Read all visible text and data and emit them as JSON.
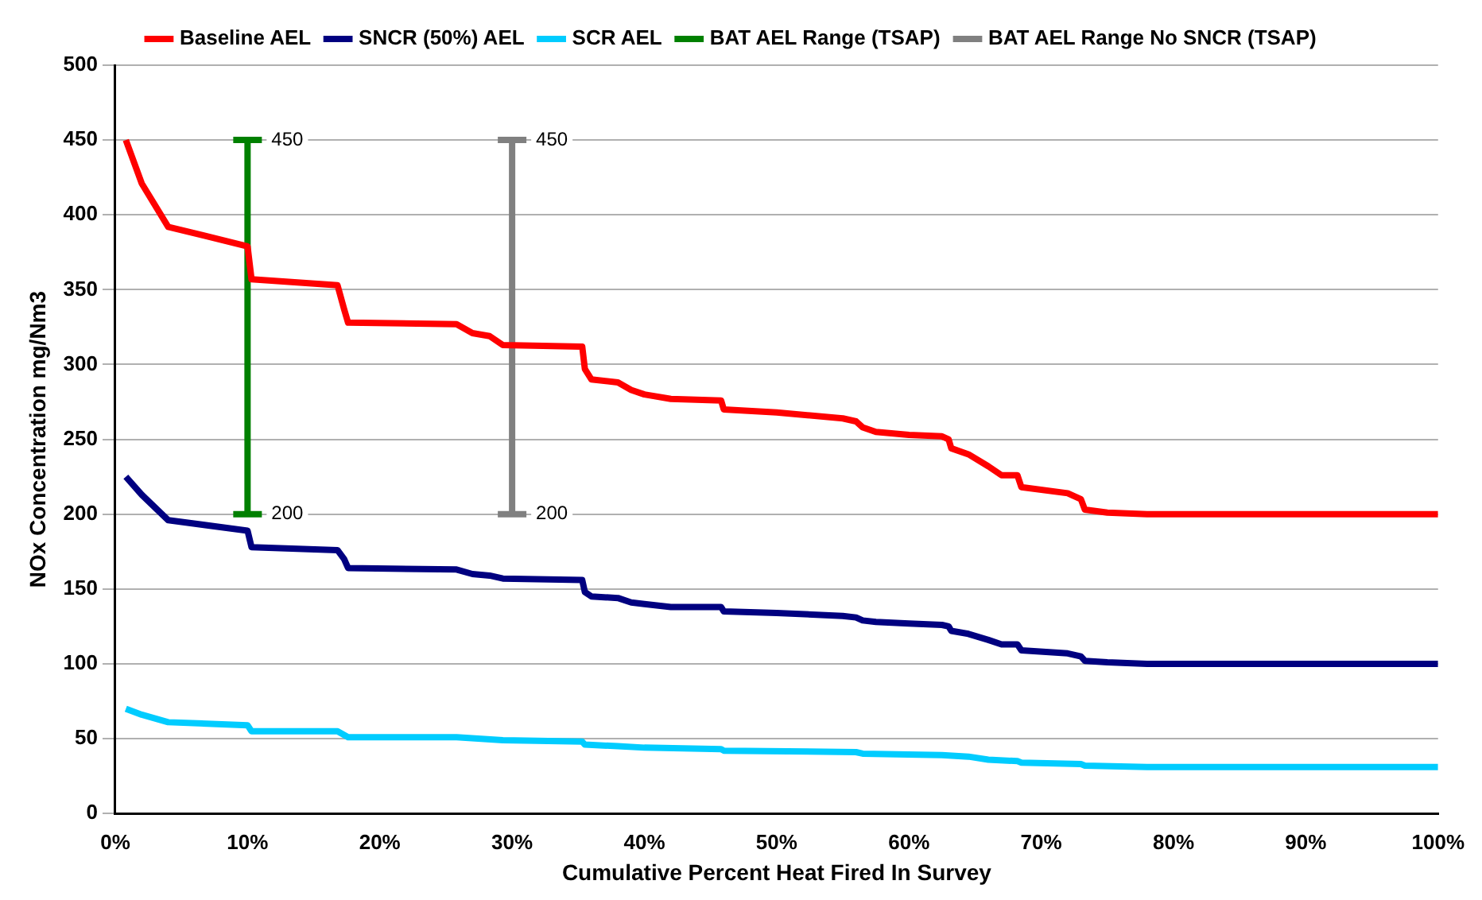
{
  "chart_data": {
    "type": "line",
    "xlabel": "Cumulative Percent Heat Fired In Survey",
    "ylabel": "NOx Concentration mg/Nm3",
    "xlim": [
      0,
      100
    ],
    "ylim": [
      0,
      500
    ],
    "xticks": [
      {
        "value": 0,
        "label": "0%"
      },
      {
        "value": 10,
        "label": "10%"
      },
      {
        "value": 20,
        "label": "20%"
      },
      {
        "value": 30,
        "label": "30%"
      },
      {
        "value": 40,
        "label": "40%"
      },
      {
        "value": 50,
        "label": "50%"
      },
      {
        "value": 60,
        "label": "60%"
      },
      {
        "value": 70,
        "label": "70%"
      },
      {
        "value": 80,
        "label": "80%"
      },
      {
        "value": 90,
        "label": "90%"
      },
      {
        "value": 100,
        "label": "100%"
      }
    ],
    "yticks": [
      0,
      50,
      100,
      150,
      200,
      250,
      300,
      350,
      400,
      450,
      500
    ],
    "grid": "y",
    "legend": "top",
    "marker": "none",
    "line_style": "solid",
    "series": [
      {
        "name": "Baseline AEL",
        "color": "#ff0000",
        "x": [
          0.8,
          2,
          4,
          10,
          10.3,
          16.8,
          17.3,
          17.6,
          25.8,
          27,
          28.3,
          29.3,
          35.3,
          35.5,
          36,
          38,
          39,
          40,
          42,
          45.8,
          46,
          50,
          55,
          56,
          56.5,
          57.5,
          60,
          62.5,
          63,
          63.2,
          64.5,
          66,
          67,
          68.2,
          68.5,
          72,
          73,
          73.3,
          75,
          78,
          100
        ],
        "values": [
          450,
          421,
          392,
          379,
          357,
          353,
          337,
          328,
          327,
          321,
          319,
          313,
          312,
          297,
          290,
          288,
          283,
          280,
          277,
          276,
          270,
          268,
          264,
          262,
          258,
          255,
          253,
          252,
          250,
          244,
          240,
          232,
          226,
          226,
          218,
          214,
          210,
          203,
          201,
          200,
          200
        ]
      },
      {
        "name": "SNCR (50%) AEL",
        "color": "#000080",
        "x": [
          0.8,
          2,
          4,
          10,
          10.3,
          16.8,
          17.3,
          17.6,
          25.8,
          27,
          28.3,
          29.3,
          35.3,
          35.5,
          36,
          38,
          39,
          40,
          42,
          45.8,
          46,
          50,
          55,
          56,
          56.5,
          57.5,
          60,
          62.5,
          63,
          63.2,
          64.5,
          66,
          67,
          68.2,
          68.5,
          72,
          73,
          73.3,
          75,
          78,
          100
        ],
        "values": [
          225,
          213,
          196,
          189,
          178,
          176,
          170,
          164,
          163,
          160,
          159,
          157,
          156,
          148,
          145,
          144,
          141,
          140,
          138,
          138,
          135,
          134,
          132,
          131,
          129,
          128,
          127,
          126,
          125,
          122,
          120,
          116,
          113,
          113,
          109,
          107,
          105,
          102,
          101,
          100,
          100
        ]
      },
      {
        "name": "SCR AEL",
        "color": "#00ccff",
        "x": [
          0.8,
          2,
          4,
          10,
          10.3,
          16.8,
          17.6,
          25.8,
          29.3,
          35.3,
          35.5,
          38,
          40,
          45.8,
          46,
          56,
          56.5,
          62.5,
          64.5,
          66,
          68.2,
          68.5,
          73,
          73.3,
          78,
          100
        ],
        "values": [
          70,
          66,
          61,
          59,
          55,
          55,
          51,
          51,
          49,
          48,
          46,
          45,
          44,
          43,
          42,
          41,
          40,
          39,
          38,
          36,
          35,
          34,
          33,
          32,
          31,
          31
        ]
      },
      {
        "name": "BAT AEL Range (TSAP)",
        "color": "#008000",
        "x": [
          10,
          10
        ],
        "values": [
          200,
          450
        ],
        "value_labels": [
          "200",
          "450"
        ]
      },
      {
        "name": "BAT AEL Range No SNCR (TSAP)",
        "color": "#808080",
        "x": [
          30,
          30
        ],
        "values": [
          200,
          450
        ],
        "value_labels": [
          "200",
          "450"
        ]
      }
    ]
  }
}
